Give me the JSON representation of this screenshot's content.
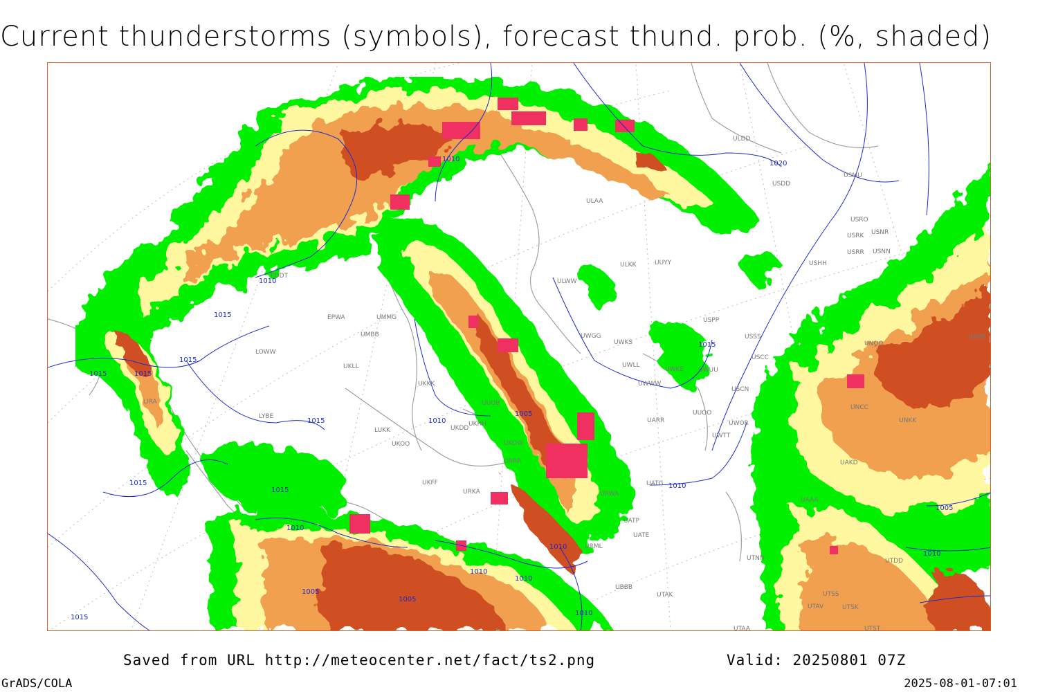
{
  "title": "Current thunderstorms (symbols), forecast thund. prob. (%, shaded)",
  "footer": {
    "saved_from": "Saved from URL http://meteocenter.net/fact/ts2.png",
    "valid": "Valid: 20250801 07Z",
    "software": "GrADS/COLA",
    "timestamp": "2025-08-01-07:01"
  },
  "colors": {
    "prob_low": "#00f000",
    "prob_mid": "#fff8a0",
    "prob_high": "#f0a050",
    "prob_max": "#d05020",
    "storm_symbol": "#f03060",
    "isobar": "#1a2ad0",
    "coastline": "#a0a0a0"
  },
  "isobar_labels": [
    "1010",
    "1010",
    "1015",
    "1015",
    "1015",
    "1015",
    "1015",
    "1015",
    "1015",
    "1010",
    "1005",
    "1010",
    "1020",
    "1015",
    "1010",
    "1005",
    "1010",
    "1010",
    "1010",
    "1005",
    "1005",
    "1010",
    "1015",
    "1010"
  ],
  "stations": [
    "ULDD",
    "USDD",
    "ULAA",
    "USMU",
    "USRO",
    "USRK",
    "USNR",
    "USRR",
    "USNN",
    "USHH",
    "ULKK",
    "UUYY",
    "ULWW",
    "USPP",
    "UWGG",
    "UWKS",
    "USSS",
    "USCC",
    "UWLL",
    "UWWW",
    "UWKE",
    "UWUU",
    "USCN",
    "UUOO",
    "UWOR",
    "UWTT",
    "UARR",
    "UATG",
    "UATP",
    "UATE",
    "URWA",
    "URML",
    "UBBB",
    "UTAK",
    "UTAA",
    "UKKK",
    "UUOB",
    "UKHH",
    "UKDD",
    "LUKK",
    "UKOO",
    "UKOW",
    "URRR",
    "UKFF",
    "URKA",
    "EDDT",
    "EPWA",
    "UMMG",
    "UMBB",
    "UKLL",
    "LOWW",
    "LYBE",
    "LIRA",
    "UTNN",
    "UTSS",
    "UTAV",
    "UTSK",
    "UNCC",
    "UNOO",
    "UNBB",
    "UNKK",
    "UAKD",
    "UAAA",
    "UTDD",
    "UTST"
  ]
}
